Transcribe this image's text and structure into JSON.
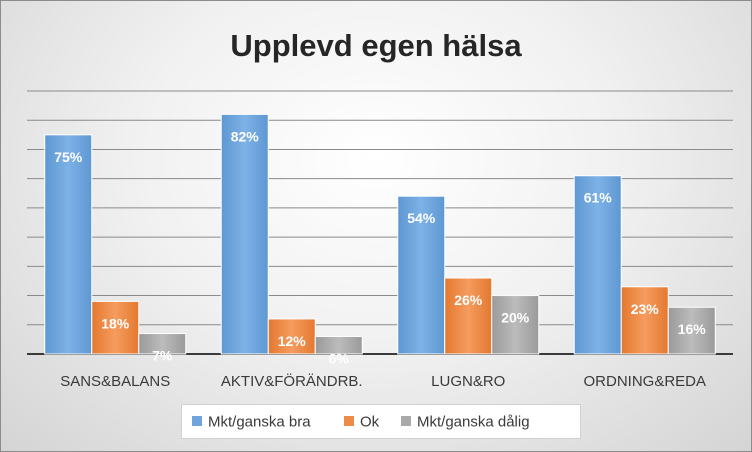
{
  "chart_data": {
    "type": "bar",
    "title": "Upplevd egen hälsa",
    "categories": [
      "SANS&BALANS",
      "AKTIV&FÖRÄNDRB.",
      "LUGN&RO",
      "ORDNING&REDA"
    ],
    "series": [
      {
        "name": "Mkt/ganska bra",
        "values": [
          75,
          82,
          54,
          61
        ],
        "labels": [
          "75%",
          "82%",
          "54%",
          "61%"
        ],
        "color": "#6fa5dc"
      },
      {
        "name": "Ok",
        "values": [
          18,
          12,
          26,
          23
        ],
        "labels": [
          "18%",
          "12%",
          "26%",
          "23%"
        ],
        "color": "#ed8b48"
      },
      {
        "name": "Mkt/ganska dålig",
        "values": [
          7,
          6,
          20,
          16
        ],
        "labels": [
          "7%",
          "6%",
          "20%",
          "16%"
        ],
        "color": "#a9a9a9"
      }
    ],
    "ylim": [
      0,
      90
    ],
    "y_unit": "%",
    "grid": true,
    "legend_position": "bottom"
  }
}
